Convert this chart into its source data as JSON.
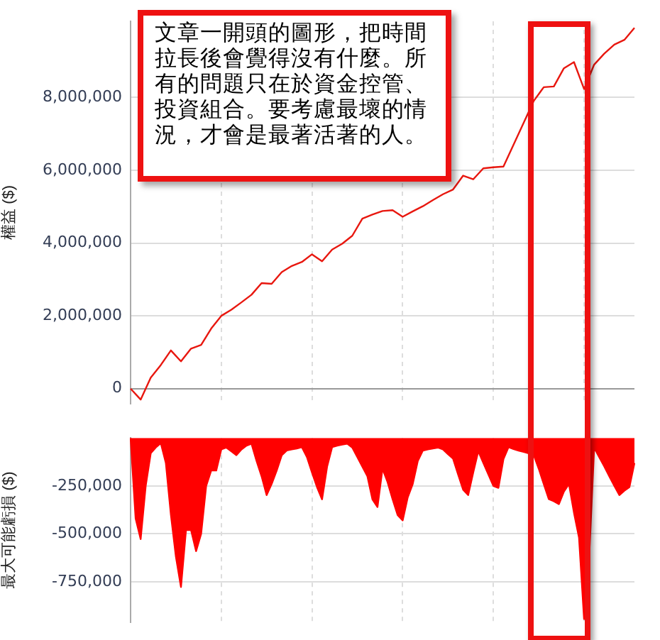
{
  "chart_data": [
    {
      "type": "line",
      "ylabel": "權益 ($)",
      "categories": [
        null,
        null,
        null,
        null,
        null,
        null,
        null,
        null,
        null,
        null,
        null,
        null,
        null,
        null,
        null,
        null,
        null,
        null,
        null,
        null,
        null,
        null,
        null,
        null,
        null,
        null,
        null,
        null,
        null,
        null,
        null,
        null,
        null,
        null,
        null,
        null,
        null,
        null,
        null,
        null,
        null,
        null,
        null,
        null,
        null,
        null,
        null,
        null,
        null,
        null,
        null
      ],
      "ylim": [
        -410000,
        10090000
      ],
      "yticks": [
        0,
        {
          "value": 2000000,
          "label": "2,000,000"
        },
        {
          "value": 4000000,
          "label": "4,000,000"
        },
        {
          "value": 6000000,
          "label": "6,000,000"
        },
        {
          "value": 8000000,
          "label": "8,000,000"
        }
      ],
      "grid": true,
      "legend": false,
      "tick_labels": "y",
      "marker": "none",
      "annotations": [
        "文章一開頭的圖形，把時間拉長後會覺得沒有什麼。所有的問題只在於資金控管、投資組合。要考慮最壞的情況，才會是最著活著的人。"
      ],
      "series": [
        {
          "color": "#e8170f",
          "values": [
            0,
            -300000,
            300000,
            650000,
            1050000,
            750000,
            1100000,
            1200000,
            1650000,
            2000000,
            2170000,
            2370000,
            2580000,
            2900000,
            2880000,
            3200000,
            3370000,
            3480000,
            3690000,
            3500000,
            3820000,
            3980000,
            4200000,
            4670000,
            4780000,
            4880000,
            4900000,
            4720000,
            4870000,
            5010000,
            5180000,
            5340000,
            5470000,
            5850000,
            5750000,
            6050000,
            6080000,
            6100000,
            6700000,
            7300000,
            7900000,
            8280000,
            8300000,
            8800000,
            8970000,
            8230000,
            8900000,
            9200000,
            9450000,
            9580000,
            9910000
          ]
        }
      ]
    },
    {
      "type": "area",
      "ylabel": "最大可能虧損 ($)",
      "categories": [
        null,
        null,
        null,
        null,
        null,
        null,
        null,
        null,
        null,
        null,
        null,
        null,
        null,
        null,
        null,
        null,
        null,
        null,
        null,
        null,
        null,
        null,
        null,
        null,
        null,
        null,
        null,
        null,
        null,
        null,
        null,
        null,
        null,
        null,
        null,
        null,
        null,
        null,
        null,
        null,
        null,
        null,
        null,
        null,
        null,
        null,
        null,
        null,
        null,
        null,
        null,
        null,
        null,
        null,
        null,
        null,
        null,
        null,
        null,
        null,
        null,
        null,
        null,
        null,
        null,
        null,
        null,
        null,
        null,
        null,
        null,
        null,
        null,
        null,
        null,
        null,
        null,
        null,
        null,
        null,
        null,
        null,
        null,
        null,
        null,
        null,
        null,
        null,
        null,
        null,
        null,
        null,
        null,
        null,
        null,
        null,
        null,
        null,
        null,
        null,
        null
      ],
      "ylim": [
        -960000,
        0
      ],
      "yticks": [
        {
          "value": -250000,
          "label": "-250,000"
        },
        {
          "value": -500000,
          "label": "-500,000"
        },
        {
          "value": -750000,
          "label": "-750,000"
        }
      ],
      "grid": true,
      "legend": false,
      "tick_labels": "y",
      "series": [
        {
          "color": "#ff0000",
          "values": [
            0,
            -420000,
            -527000,
            -250000,
            -80000,
            -50000,
            -27000,
            -130000,
            -400000,
            -620000,
            -777000,
            -480000,
            -480000,
            -590000,
            -500000,
            -250000,
            -170000,
            -170000,
            -60000,
            -50000,
            -70000,
            -90000,
            -60000,
            -40000,
            -30000,
            -120000,
            -200000,
            -298000,
            -240000,
            -170000,
            -90000,
            -65000,
            -60000,
            -55000,
            -48000,
            -100000,
            -180000,
            -256000,
            -320000,
            -150000,
            -48000,
            -40000,
            -35000,
            -30000,
            -50000,
            -100000,
            -150000,
            -200000,
            -320000,
            -360000,
            -160000,
            -230000,
            -320000,
            -402000,
            -430000,
            -310000,
            -240000,
            -120000,
            -66000,
            -60000,
            -55000,
            -50000,
            -60000,
            -85000,
            -108000,
            -190000,
            -270000,
            -298000,
            -180000,
            -69000,
            -130000,
            -190000,
            -250000,
            -260000,
            -110000,
            -48000,
            -58000,
            -66000,
            -73000,
            -80000,
            -88000,
            -160000,
            -240000,
            -319000,
            -330000,
            -345000,
            -280000,
            -240000,
            -390000,
            -520000,
            -944000,
            -631000,
            -50000,
            -100000,
            -148000,
            -200000,
            -250000,
            -298000,
            -275000,
            -256000,
            -131000
          ]
        }
      ]
    }
  ]
}
